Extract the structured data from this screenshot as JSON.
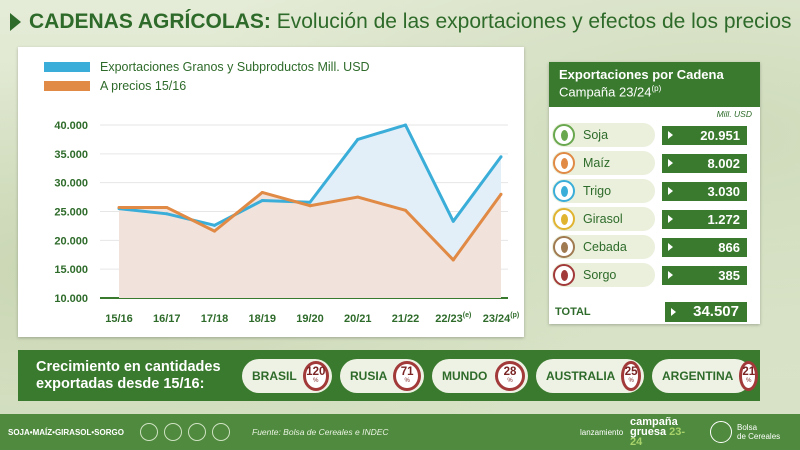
{
  "header": {
    "title_bold": "CADENAS AGRÍCOLAS:",
    "title_rest": " Evolución de las exportaciones y efectos de los precios"
  },
  "colors": {
    "green": "#3a7a2e",
    "blue": "#3aaed8",
    "orange": "#e08a45",
    "ring": "#a23a3a"
  },
  "chart_data": {
    "type": "line",
    "legend": [
      "Exportaciones Granos y Subproductos Mill. USD",
      "A precios 15/16"
    ],
    "categories": [
      "15/16",
      "16/17",
      "17/18",
      "18/19",
      "19/20",
      "20/21",
      "21/22",
      "22/23",
      "23/24"
    ],
    "category_superscripts": [
      "",
      "",
      "",
      "",
      "",
      "",
      "",
      "(e)",
      "(p)"
    ],
    "yticks": [
      "40.000",
      "35.000",
      "30.000",
      "25.000",
      "20.000",
      "15.000",
      "10.000"
    ],
    "ylim": [
      10000,
      40000
    ],
    "series": [
      {
        "name": "Exportaciones Granos y Subproductos Mill. USD",
        "color": "#3aaed8",
        "values": [
          25500,
          24600,
          22600,
          26900,
          26600,
          37500,
          40000,
          23300,
          34500
        ]
      },
      {
        "name": "A precios 15/16",
        "color": "#e08a45",
        "values": [
          25700,
          25700,
          21600,
          28300,
          26000,
          27500,
          25200,
          16600,
          28000
        ]
      }
    ]
  },
  "side": {
    "title": "Exportaciones por Cadena",
    "subtitle": "Campaña 23/24",
    "subtitle_sup": "(p)",
    "unit": "Mill. USD",
    "rows": [
      {
        "name": "Soja",
        "value": "20.951",
        "icon": "soy-icon",
        "color": "#6aa84f"
      },
      {
        "name": "Maíz",
        "value": "8.002",
        "icon": "corn-icon",
        "color": "#e08a45"
      },
      {
        "name": "Trigo",
        "value": "3.030",
        "icon": "wheat-icon",
        "color": "#3aaed8"
      },
      {
        "name": "Girasol",
        "value": "1.272",
        "icon": "sunflower-icon",
        "color": "#e0b430"
      },
      {
        "name": "Cebada",
        "value": "866",
        "icon": "barley-icon",
        "color": "#a07a50"
      },
      {
        "name": "Sorgo",
        "value": "385",
        "icon": "sorghum-icon",
        "color": "#a23a3a"
      }
    ],
    "total_label": "TOTAL",
    "total_value": "34.507"
  },
  "growth": {
    "title_line1": "Crecimiento en cantidades",
    "title_line2": "exportadas desde 15/16:",
    "percent_sign": "%",
    "items": [
      {
        "name": "BRASIL",
        "value": "120"
      },
      {
        "name": "RUSIA",
        "value": "71"
      },
      {
        "name": "MUNDO",
        "value": "28"
      },
      {
        "name": "AUSTRALIA",
        "value": "25"
      },
      {
        "name": "ARGENTINA",
        "value": "21"
      }
    ]
  },
  "footer": {
    "crops": "SOJA•MAÍZ•GIRASOL•SORGO",
    "source": "Fuente: Bolsa de Cereales e INDEC",
    "launch": "lanzamiento",
    "campaign_line1": "campaña",
    "campaign_line2": "gruesa",
    "campaign_year": "23-24",
    "org_line1": "Bolsa",
    "org_line2": "de Cereales"
  }
}
